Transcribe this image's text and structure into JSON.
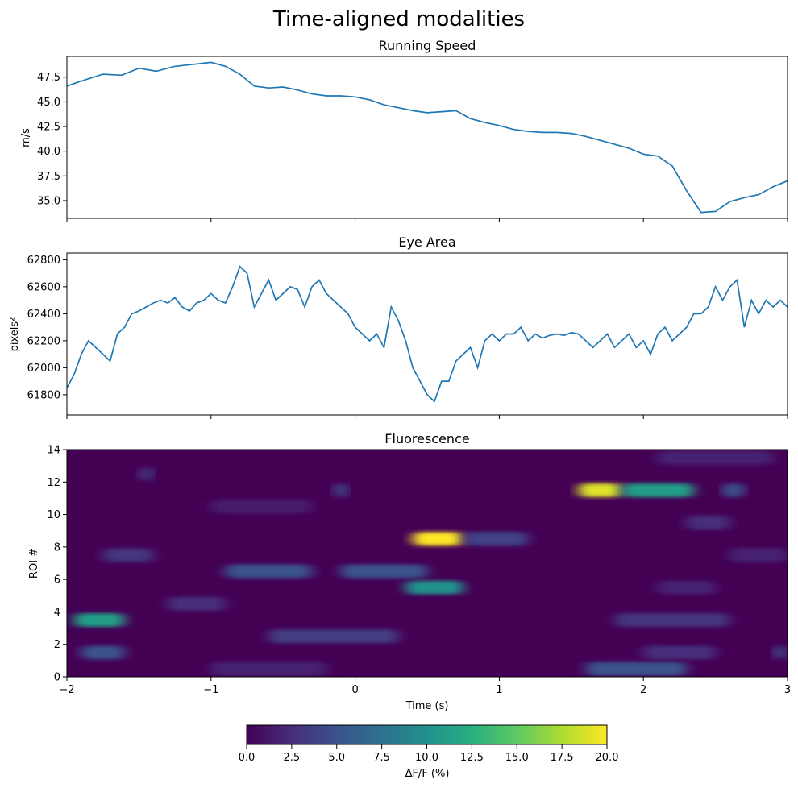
{
  "figure_title": "Time-aligned modalities",
  "colors": {
    "line": "#1f77b4",
    "axes": "#000000"
  },
  "colormap": "viridis",
  "chart_data": [
    {
      "type": "line",
      "title": "Running Speed",
      "xlabel": "",
      "ylabel": "m/s",
      "xlim": [
        -2,
        3
      ],
      "ylim": [
        33.2,
        49.6
      ],
      "yticks": [
        35.0,
        37.5,
        40.0,
        42.5,
        45.0,
        47.5
      ],
      "ytick_labels": [
        "35.0",
        "37.5",
        "40.0",
        "42.5",
        "45.0",
        "47.5"
      ],
      "x": [
        -2.0,
        -1.9,
        -1.75,
        -1.62,
        -1.5,
        -1.38,
        -1.25,
        -1.12,
        -1.0,
        -0.9,
        -0.8,
        -0.7,
        -0.6,
        -0.5,
        -0.4,
        -0.3,
        -0.2,
        -0.1,
        0.0,
        0.1,
        0.2,
        0.3,
        0.4,
        0.5,
        0.6,
        0.7,
        0.8,
        0.9,
        1.0,
        1.1,
        1.2,
        1.3,
        1.4,
        1.5,
        1.6,
        1.7,
        1.8,
        1.9,
        2.0,
        2.1,
        2.2,
        2.3,
        2.4,
        2.5,
        2.6,
        2.7,
        2.8,
        2.9,
        3.0
      ],
      "y": [
        46.6,
        47.1,
        47.8,
        47.7,
        48.4,
        48.1,
        48.6,
        48.8,
        49.0,
        48.6,
        47.8,
        46.6,
        46.4,
        46.5,
        46.2,
        45.8,
        45.6,
        45.6,
        45.5,
        45.2,
        44.7,
        44.4,
        44.1,
        43.9,
        44.0,
        44.1,
        43.3,
        42.9,
        42.6,
        42.2,
        42.0,
        41.9,
        41.9,
        41.8,
        41.5,
        41.1,
        40.7,
        40.3,
        39.7,
        39.5,
        38.5,
        36.0,
        33.8,
        33.9,
        34.9,
        35.3,
        35.6,
        36.4,
        37.0
      ]
    },
    {
      "type": "line",
      "title": "Eye Area",
      "xlabel": "",
      "ylabel": "pixels²",
      "xlim": [
        -2,
        3
      ],
      "ylim": [
        61650,
        62850
      ],
      "yticks": [
        61800,
        62000,
        62200,
        62400,
        62600,
        62800
      ],
      "ytick_labels": [
        "61800",
        "62000",
        "62200",
        "62400",
        "62600",
        "62800"
      ],
      "x": [
        -2.0,
        -1.95,
        -1.9,
        -1.85,
        -1.8,
        -1.75,
        -1.7,
        -1.65,
        -1.6,
        -1.55,
        -1.5,
        -1.45,
        -1.4,
        -1.35,
        -1.3,
        -1.25,
        -1.2,
        -1.15,
        -1.1,
        -1.05,
        -1.0,
        -0.95,
        -0.9,
        -0.85,
        -0.8,
        -0.75,
        -0.7,
        -0.65,
        -0.6,
        -0.55,
        -0.5,
        -0.45,
        -0.4,
        -0.35,
        -0.3,
        -0.25,
        -0.2,
        -0.15,
        -0.1,
        -0.05,
        0.0,
        0.05,
        0.1,
        0.15,
        0.2,
        0.25,
        0.3,
        0.35,
        0.4,
        0.45,
        0.5,
        0.55,
        0.6,
        0.65,
        0.7,
        0.75,
        0.8,
        0.85,
        0.9,
        0.95,
        1.0,
        1.05,
        1.1,
        1.15,
        1.2,
        1.25,
        1.3,
        1.35,
        1.4,
        1.45,
        1.5,
        1.55,
        1.6,
        1.65,
        1.7,
        1.75,
        1.8,
        1.85,
        1.9,
        1.95,
        2.0,
        2.05,
        2.1,
        2.15,
        2.2,
        2.25,
        2.3,
        2.35,
        2.4,
        2.45,
        2.5,
        2.55,
        2.6,
        2.65,
        2.7,
        2.75,
        2.8,
        2.85,
        2.9,
        2.95,
        3.0
      ],
      "y": [
        61850,
        61950,
        62100,
        62200,
        62150,
        62100,
        62050,
        62250,
        62300,
        62400,
        62420,
        62450,
        62480,
        62500,
        62480,
        62520,
        62450,
        62420,
        62480,
        62500,
        62550,
        62500,
        62480,
        62600,
        62750,
        62700,
        62450,
        62550,
        62650,
        62500,
        62550,
        62600,
        62580,
        62450,
        62600,
        62650,
        62550,
        62500,
        62450,
        62400,
        62300,
        62250,
        62200,
        62250,
        62150,
        62450,
        62350,
        62200,
        62000,
        61900,
        61800,
        61750,
        61900,
        61900,
        62050,
        62100,
        62150,
        62000,
        62200,
        62250,
        62200,
        62250,
        62250,
        62300,
        62200,
        62250,
        62220,
        62240,
        62250,
        62240,
        62260,
        62250,
        62200,
        62150,
        62200,
        62250,
        62150,
        62200,
        62250,
        62150,
        62200,
        62100,
        62250,
        62300,
        62200,
        62250,
        62300,
        62400,
        62400,
        62450,
        62600,
        62500,
        62600,
        62650,
        62300,
        62500,
        62400,
        62500,
        62450,
        62500,
        62450
      ]
    },
    {
      "type": "heatmap",
      "title": "Fluorescence",
      "xlabel": "Time (s)",
      "ylabel": "ROI #",
      "xlim": [
        -2,
        3
      ],
      "ylim": [
        0,
        14
      ],
      "xticks": [
        -2,
        -1,
        0,
        1,
        2,
        3
      ],
      "xtick_labels": [
        "−2",
        "−1",
        "0",
        "1",
        "2",
        "3"
      ],
      "yticks": [
        0,
        2,
        4,
        6,
        8,
        10,
        12,
        14
      ],
      "ytick_labels": [
        "0",
        "2",
        "4",
        "6",
        "8",
        "10",
        "12",
        "14"
      ],
      "background_value": 0.5,
      "events": [
        {
          "roi": 8.5,
          "t_start": 0.4,
          "t_end": 0.75,
          "value": 20
        },
        {
          "roi": 8.5,
          "t_start": 0.75,
          "t_end": 1.2,
          "value": 4
        },
        {
          "roi": 11.5,
          "t_start": 1.55,
          "t_end": 1.85,
          "value": 19
        },
        {
          "roi": 11.5,
          "t_start": 1.85,
          "t_end": 2.35,
          "value": 11
        },
        {
          "roi": 5.5,
          "t_start": 0.35,
          "t_end": 0.75,
          "value": 10
        },
        {
          "roi": 3.5,
          "t_start": -1.95,
          "t_end": -1.6,
          "value": 11
        },
        {
          "roi": 1.5,
          "t_start": -1.9,
          "t_end": -1.6,
          "value": 5
        },
        {
          "roi": 6.5,
          "t_start": -0.9,
          "t_end": -0.3,
          "value": 5
        },
        {
          "roi": 6.5,
          "t_start": -0.1,
          "t_end": 0.5,
          "value": 5
        },
        {
          "roi": 2.5,
          "t_start": -0.6,
          "t_end": 0.3,
          "value": 3.5
        },
        {
          "roi": 0.5,
          "t_start": 1.6,
          "t_end": 2.3,
          "value": 5
        },
        {
          "roi": 3.5,
          "t_start": 1.8,
          "t_end": 2.6,
          "value": 3
        },
        {
          "roi": 11.5,
          "t_start": 2.55,
          "t_end": 2.7,
          "value": 5
        },
        {
          "roi": 11.5,
          "t_start": -0.15,
          "t_end": -0.05,
          "value": 4
        },
        {
          "roi": 7.5,
          "t_start": -1.75,
          "t_end": -1.4,
          "value": 3
        },
        {
          "roi": 12.5,
          "t_start": -1.5,
          "t_end": -1.4,
          "value": 3
        },
        {
          "roi": 4.5,
          "t_start": -1.3,
          "t_end": -0.9,
          "value": 2.5
        },
        {
          "roi": 9.5,
          "t_start": 2.3,
          "t_end": 2.6,
          "value": 2.5
        },
        {
          "roi": 1.5,
          "t_start": 2.0,
          "t_end": 2.5,
          "value": 2.5
        },
        {
          "roi": 5.5,
          "t_start": 2.1,
          "t_end": 2.5,
          "value": 2
        },
        {
          "roi": 13.5,
          "t_start": 2.1,
          "t_end": 2.9,
          "value": 2
        },
        {
          "roi": 0.5,
          "t_start": -1.0,
          "t_end": -0.2,
          "value": 2
        },
        {
          "roi": 10.5,
          "t_start": -1.0,
          "t_end": -0.3,
          "value": 1.5
        },
        {
          "roi": 7.5,
          "t_start": 2.6,
          "t_end": 3.0,
          "value": 2
        },
        {
          "roi": 1.5,
          "t_start": 2.9,
          "t_end": 3.0,
          "value": 4
        }
      ]
    }
  ],
  "colorbar": {
    "label": "ΔF/F (%)",
    "range": [
      0,
      20
    ],
    "ticks": [
      0,
      2.5,
      5,
      7.5,
      10,
      12.5,
      15,
      17.5,
      20
    ],
    "tick_labels": [
      "0.0",
      "2.5",
      "5.0",
      "7.5",
      "10.0",
      "12.5",
      "15.0",
      "17.5",
      "20.0"
    ]
  }
}
